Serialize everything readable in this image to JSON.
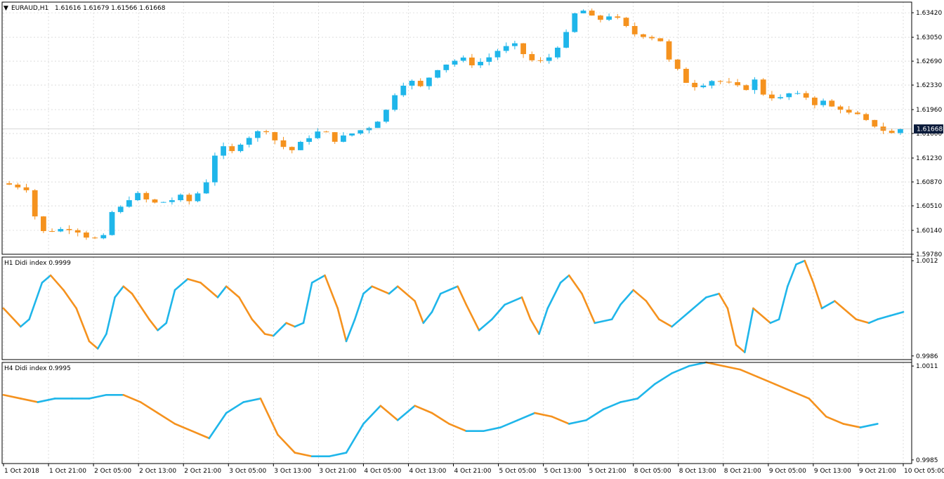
{
  "main": {
    "symbol": "EURAUD,H1",
    "quote": "1.61616 1.61679 1.61566 1.61668",
    "current_price": "1.61668"
  },
  "colors": {
    "bull": "#1fb6ea",
    "bear": "#f5921e",
    "grid": "#c8c8c8",
    "frame": "#000000",
    "badge": "#0a1a3a"
  },
  "panels": {
    "h1": {
      "title": "H1 Didi index 0.9999"
    },
    "h4": {
      "title": "H4 Didi index 0.9995"
    }
  },
  "chart_data": [
    {
      "type": "candlestick",
      "ylim": [
        1.5978,
        1.6358
      ],
      "yticks": [
        "1.63420",
        "1.63050",
        "1.62690",
        "1.62330",
        "1.61960",
        "1.61600",
        "1.61230",
        "1.60870",
        "1.60510",
        "1.60140",
        "1.59780"
      ],
      "x": [
        "1 Oct 2018",
        "1 Oct 21:00",
        "2 Oct 05:00",
        "2 Oct 13:00",
        "2 Oct 21:00",
        "3 Oct 05:00",
        "3 Oct 13:00",
        "3 Oct 21:00",
        "4 Oct 05:00",
        "4 Oct 13:00",
        "4 Oct 21:00",
        "5 Oct 05:00",
        "5 Oct 13:00",
        "5 Oct 21:00",
        "8 Oct 05:00",
        "8 Oct 13:00",
        "8 Oct 21:00",
        "9 Oct 05:00",
        "9 Oct 13:00",
        "9 Oct 21:00",
        "10 Oct 05:00"
      ],
      "close_path": [
        [
          0,
          1.6085
        ],
        [
          1.5,
          1.6082
        ],
        [
          3,
          1.6077
        ],
        [
          3.6,
          1.6045
        ],
        [
          5,
          1.6012
        ],
        [
          6.5,
          1.6015
        ],
        [
          8,
          1.6017
        ],
        [
          9,
          1.6013
        ],
        [
          10,
          1.6005
        ],
        [
          11,
          1.6001
        ],
        [
          12,
          1.6004
        ],
        [
          12.5,
          1.6038
        ],
        [
          14,
          1.6048
        ],
        [
          15,
          1.6062
        ],
        [
          16,
          1.6068
        ],
        [
          17,
          1.606
        ],
        [
          18,
          1.6055
        ],
        [
          19,
          1.6057
        ],
        [
          20,
          1.606
        ],
        [
          21,
          1.6065
        ],
        [
          22,
          1.6058
        ],
        [
          23,
          1.607
        ],
        [
          24,
          1.6088
        ],
        [
          25,
          1.6128
        ],
        [
          26,
          1.6138
        ],
        [
          27,
          1.6132
        ],
        [
          28,
          1.6146
        ],
        [
          29,
          1.6155
        ],
        [
          30,
          1.6162
        ],
        [
          31,
          1.6165
        ],
        [
          32,
          1.615
        ],
        [
          33,
          1.614
        ],
        [
          34,
          1.6135
        ],
        [
          35,
          1.6145
        ],
        [
          36,
          1.6155
        ],
        [
          37,
          1.6162
        ],
        [
          38,
          1.616
        ],
        [
          39,
          1.615
        ],
        [
          40,
          1.6155
        ],
        [
          41,
          1.616
        ],
        [
          42,
          1.6165
        ],
        [
          43,
          1.617
        ],
        [
          44,
          1.618
        ],
        [
          45,
          1.6195
        ],
        [
          46,
          1.622
        ],
        [
          47,
          1.6235
        ],
        [
          48,
          1.6238
        ],
        [
          49,
          1.623
        ],
        [
          50,
          1.6245
        ],
        [
          51,
          1.6258
        ],
        [
          52,
          1.6265
        ],
        [
          53,
          1.627
        ],
        [
          54,
          1.6272
        ],
        [
          55,
          1.6265
        ],
        [
          56,
          1.6268
        ],
        [
          57,
          1.6275
        ],
        [
          58,
          1.6285
        ],
        [
          59,
          1.629
        ],
        [
          60,
          1.6293
        ],
        [
          61,
          1.628
        ],
        [
          62,
          1.627
        ],
        [
          63,
          1.6268
        ],
        [
          64,
          1.6275
        ],
        [
          65,
          1.6292
        ],
        [
          66,
          1.631
        ],
        [
          67,
          1.634
        ],
        [
          68,
          1.6345
        ],
        [
          69,
          1.6335
        ],
        [
          70,
          1.6332
        ],
        [
          71,
          1.6338
        ],
        [
          72,
          1.6332
        ],
        [
          73,
          1.632
        ],
        [
          74,
          1.631
        ],
        [
          75,
          1.6308
        ],
        [
          76,
          1.6305
        ],
        [
          77,
          1.63
        ],
        [
          78,
          1.627
        ],
        [
          79,
          1.6255
        ],
        [
          80,
          1.6238
        ],
        [
          81,
          1.6232
        ],
        [
          82,
          1.6235
        ],
        [
          83,
          1.624
        ],
        [
          84,
          1.6238
        ],
        [
          85,
          1.6235
        ],
        [
          86,
          1.623
        ],
        [
          87,
          1.6228
        ],
        [
          88,
          1.624
        ],
        [
          89,
          1.622
        ],
        [
          90,
          1.6215
        ],
        [
          91,
          1.6213
        ],
        [
          92,
          1.622
        ],
        [
          93,
          1.6218
        ],
        [
          94,
          1.6215
        ],
        [
          95,
          1.6205
        ],
        [
          96,
          1.6208
        ],
        [
          97,
          1.62
        ],
        [
          98,
          1.6198
        ],
        [
          99,
          1.619
        ],
        [
          100,
          1.6187
        ],
        [
          101,
          1.6178
        ],
        [
          102,
          1.6172
        ],
        [
          103,
          1.6165
        ],
        [
          104,
          1.616
        ],
        [
          105,
          1.6167
        ]
      ],
      "n_candles": 105
    },
    {
      "type": "line",
      "name": "H1 Didi index",
      "ylim": [
        0.9985,
        1.0013
      ],
      "yticks": [
        "1.0012",
        "0.9986"
      ],
      "x_range": [
        0,
        105
      ],
      "points": [
        [
          0,
          0.9999
        ],
        [
          2,
          0.9994
        ],
        [
          3,
          0.9996
        ],
        [
          4.5,
          1.0006
        ],
        [
          5.5,
          1.0008
        ],
        [
          7,
          1.0004
        ],
        [
          8.5,
          0.9999
        ],
        [
          10,
          0.999
        ],
        [
          11,
          0.9988
        ],
        [
          12,
          0.9992
        ],
        [
          13,
          1.0002
        ],
        [
          14,
          1.0005
        ],
        [
          15,
          1.0003
        ],
        [
          17,
          0.9996
        ],
        [
          18,
          0.9993
        ],
        [
          19,
          0.9995
        ],
        [
          20,
          1.0004
        ],
        [
          21.5,
          1.0007
        ],
        [
          23,
          1.0006
        ],
        [
          25,
          1.0002
        ],
        [
          26,
          1.0005
        ],
        [
          27.5,
          1.0002
        ],
        [
          29,
          0.9996
        ],
        [
          30.5,
          0.9992
        ],
        [
          31.5,
          0.99915
        ],
        [
          33,
          0.9995
        ],
        [
          34,
          0.9994
        ],
        [
          35,
          0.9995
        ],
        [
          36,
          1.0006
        ],
        [
          37.5,
          1.0008
        ],
        [
          39,
          0.9999
        ],
        [
          40,
          0.999
        ],
        [
          41,
          0.9996
        ],
        [
          42,
          1.0003
        ],
        [
          43,
          1.0005
        ],
        [
          45,
          1.0003
        ],
        [
          46,
          1.0005
        ],
        [
          48,
          1.0001
        ],
        [
          49,
          0.9995
        ],
        [
          50,
          0.9998
        ],
        [
          51,
          1.0003
        ],
        [
          53,
          1.0005
        ],
        [
          54,
          1.0
        ],
        [
          55.5,
          0.9993
        ],
        [
          57,
          0.9996
        ],
        [
          58.5,
          1.0
        ],
        [
          60.5,
          1.0002
        ],
        [
          61.5,
          0.9996
        ],
        [
          62.5,
          0.9992
        ],
        [
          63.5,
          0.9999
        ],
        [
          65,
          1.0006
        ],
        [
          66,
          1.0008
        ],
        [
          67.5,
          1.0003
        ],
        [
          69,
          0.9995
        ],
        [
          71,
          0.9996
        ],
        [
          72,
          1.0
        ],
        [
          73.5,
          1.0004
        ],
        [
          75,
          1.0001
        ],
        [
          76.5,
          0.9996
        ],
        [
          78,
          0.9994
        ],
        [
          80,
          0.9998
        ],
        [
          82,
          1.0002
        ],
        [
          83.5,
          1.0003
        ],
        [
          84.5,
          0.9999
        ],
        [
          85.5,
          0.9989
        ],
        [
          86.5,
          0.9987
        ],
        [
          87.5,
          0.9999
        ],
        [
          88,
          0.9998
        ],
        [
          89.5,
          0.9995
        ],
        [
          90.5,
          0.9996
        ],
        [
          91.5,
          1.0005
        ],
        [
          92.5,
          1.0011
        ],
        [
          93.5,
          1.0012
        ],
        [
          94.5,
          1.0006
        ],
        [
          95.5,
          0.9999
        ],
        [
          97,
          1.0001
        ],
        [
          98,
          0.9999
        ],
        [
          99.5,
          0.9996
        ],
        [
          101,
          0.9995
        ],
        [
          102,
          0.9996
        ],
        [
          103.5,
          0.9997
        ],
        [
          105,
          0.9998
        ]
      ]
    },
    {
      "type": "line",
      "name": "H4 Didi index",
      "ylim": [
        0.9984,
        1.0012
      ],
      "yticks": [
        "1.0011",
        "0.9985"
      ],
      "x_range": [
        0,
        105
      ],
      "points": [
        [
          0,
          1.0003
        ],
        [
          2,
          1.0002
        ],
        [
          4,
          1.0001
        ],
        [
          6,
          1.0002
        ],
        [
          8,
          1.0002
        ],
        [
          10,
          1.0002
        ],
        [
          12,
          1.0003
        ],
        [
          14,
          1.0003
        ],
        [
          16,
          1.0001
        ],
        [
          18,
          0.9998
        ],
        [
          20,
          0.9995
        ],
        [
          22,
          0.9993
        ],
        [
          24,
          0.9991
        ],
        [
          26,
          0.9998
        ],
        [
          28,
          1.0001
        ],
        [
          30,
          1.0002
        ],
        [
          32,
          0.9992
        ],
        [
          34,
          0.9987
        ],
        [
          36,
          0.9986
        ],
        [
          38,
          0.9986
        ],
        [
          40,
          0.9987
        ],
        [
          42,
          0.9995
        ],
        [
          44,
          1.0
        ],
        [
          46,
          0.9996
        ],
        [
          48,
          1.0
        ],
        [
          50,
          0.9998
        ],
        [
          52,
          0.9995
        ],
        [
          54,
          0.9993
        ],
        [
          56,
          0.9993
        ],
        [
          58,
          0.9994
        ],
        [
          60,
          0.9996
        ],
        [
          62,
          0.9998
        ],
        [
          64,
          0.9997
        ],
        [
          66,
          0.9995
        ],
        [
          68,
          0.9996
        ],
        [
          70,
          0.9999
        ],
        [
          72,
          1.0001
        ],
        [
          74,
          1.0002
        ],
        [
          76,
          1.0006
        ],
        [
          78,
          1.0009
        ],
        [
          80,
          1.0011
        ],
        [
          82,
          1.0012
        ],
        [
          84,
          1.0011
        ],
        [
          86,
          1.001
        ],
        [
          88,
          1.0008
        ],
        [
          90,
          1.0006
        ],
        [
          92,
          1.0004
        ],
        [
          94,
          1.0002
        ],
        [
          96,
          0.9997
        ],
        [
          98,
          0.9995
        ],
        [
          100,
          0.9994
        ],
        [
          102,
          0.9995
        ]
      ]
    }
  ]
}
